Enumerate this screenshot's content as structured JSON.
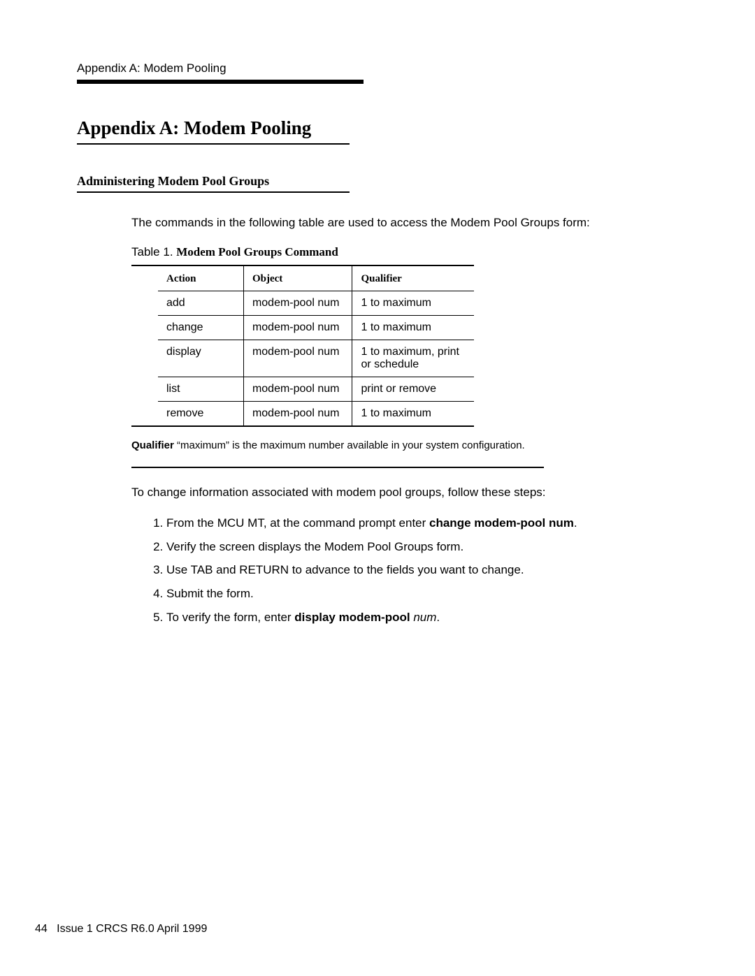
{
  "runningHead": "Appendix A: Modem Pooling",
  "title": "Appendix A: Modem Pooling",
  "subhead": "Administering Modem Pool Groups",
  "intro": "The commands in the following table are used to access the Modem Pool Groups form:",
  "tableCaptionPrefix": "Table 1.  ",
  "tableCaptionBold": "Modem Pool Groups Command",
  "table": {
    "columns": [
      "Action",
      "Object",
      "Qualifier"
    ],
    "rows": [
      [
        "add",
        "modem-pool num",
        "1 to maximum"
      ],
      [
        "change",
        "modem-pool num",
        "1 to maximum"
      ],
      [
        "display",
        "modem-pool num",
        "1 to maximum, print or schedule"
      ],
      [
        "list",
        "modem-pool num",
        "print or remove"
      ],
      [
        "remove",
        "modem-pool num",
        "1 to maximum"
      ]
    ]
  },
  "qualifierNote": {
    "label": "Qualifier",
    "text": " “maximum” is the maximum number available in your system configuration."
  },
  "stepsIntro": "To change information associated with modem pool groups, follow these steps:",
  "steps": [
    {
      "pre": "From the MCU MT, at the command prompt enter ",
      "bold": "change modem-pool num",
      "post": "."
    },
    {
      "pre": "Verify the screen displays the Modem Pool Groups form.",
      "bold": "",
      "post": ""
    },
    {
      "pre": "Use TAB and RETURN to advance to the fields you want to change.",
      "bold": "",
      "post": ""
    },
    {
      "pre": "Submit the form.",
      "bold": "",
      "post": ""
    },
    {
      "pre": "To verify the form, enter ",
      "bold": "display modem-pool",
      "italic": " num",
      "post": "."
    }
  ],
  "footer": {
    "pageNum": "44",
    "text": "Issue 1 CRCS R6.0  April 1999"
  }
}
